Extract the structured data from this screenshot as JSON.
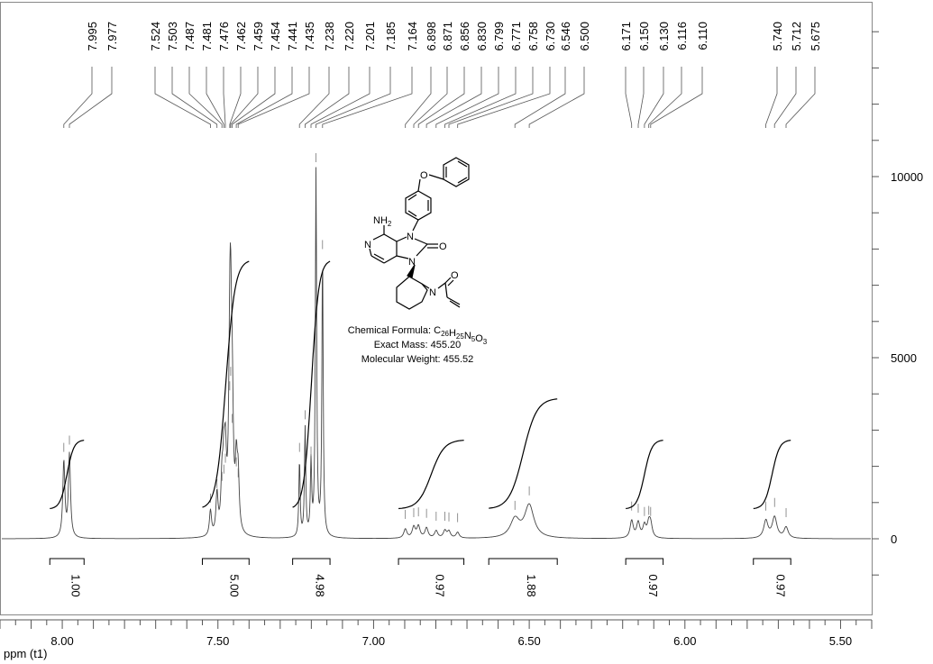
{
  "chart_data": {
    "type": "line",
    "xlabel": "ppm (t1)",
    "x_reversed": true,
    "xlim": [
      8.2,
      5.4
    ],
    "x_ticks": [
      "8.00",
      "7.50",
      "7.00",
      "6.50",
      "6.00",
      "5.50"
    ],
    "x_tick_values": [
      8.0,
      7.5,
      7.0,
      6.5,
      6.0,
      5.5
    ],
    "ylim": [
      -1400,
      14500
    ],
    "y_ticks": [
      "0",
      "5000",
      "10000"
    ],
    "y_tick_values": [
      0,
      5000,
      10000
    ],
    "series": [
      {
        "peaks": [
          {
            "ppm": 7.995,
            "h": 2100,
            "w": 0.004
          },
          {
            "ppm": 7.977,
            "h": 2300,
            "w": 0.004
          },
          {
            "ppm": 7.524,
            "h": 700,
            "w": 0.004
          },
          {
            "ppm": 7.503,
            "h": 1100,
            "w": 0.004
          },
          {
            "ppm": 7.487,
            "h": 1300,
            "w": 0.004
          },
          {
            "ppm": 7.481,
            "h": 1500,
            "w": 0.004
          },
          {
            "ppm": 7.476,
            "h": 1800,
            "w": 0.004
          },
          {
            "ppm": 7.462,
            "h": 3800,
            "w": 0.004
          },
          {
            "ppm": 7.459,
            "h": 4200,
            "w": 0.004
          },
          {
            "ppm": 7.454,
            "h": 2900,
            "w": 0.004
          },
          {
            "ppm": 7.441,
            "h": 1700,
            "w": 0.004
          },
          {
            "ppm": 7.435,
            "h": 1400,
            "w": 0.004
          },
          {
            "ppm": 7.238,
            "h": 2100,
            "w": 0.0025
          },
          {
            "ppm": 7.22,
            "h": 3000,
            "w": 0.0025
          },
          {
            "ppm": 7.201,
            "h": 2000,
            "w": 0.0025
          },
          {
            "ppm": 7.185,
            "h": 10100,
            "w": 0.0025
          },
          {
            "ppm": 7.164,
            "h": 7700,
            "w": 0.0025
          },
          {
            "ppm": 6.898,
            "h": 250,
            "w": 0.006
          },
          {
            "ppm": 6.871,
            "h": 300,
            "w": 0.006
          },
          {
            "ppm": 6.856,
            "h": 320,
            "w": 0.006
          },
          {
            "ppm": 6.83,
            "h": 280,
            "w": 0.006
          },
          {
            "ppm": 6.799,
            "h": 200,
            "w": 0.006
          },
          {
            "ppm": 6.771,
            "h": 200,
            "w": 0.006
          },
          {
            "ppm": 6.758,
            "h": 180,
            "w": 0.006
          },
          {
            "ppm": 6.73,
            "h": 160,
            "w": 0.006
          },
          {
            "ppm": 6.546,
            "h": 500,
            "w": 0.018
          },
          {
            "ppm": 6.5,
            "h": 900,
            "w": 0.018
          },
          {
            "ppm": 6.171,
            "h": 480,
            "w": 0.006
          },
          {
            "ppm": 6.15,
            "h": 420,
            "w": 0.006
          },
          {
            "ppm": 6.13,
            "h": 330,
            "w": 0.006
          },
          {
            "ppm": 6.116,
            "h": 360,
            "w": 0.006
          },
          {
            "ppm": 6.11,
            "h": 330,
            "w": 0.006
          },
          {
            "ppm": 5.74,
            "h": 480,
            "w": 0.008
          },
          {
            "ppm": 5.712,
            "h": 580,
            "w": 0.009
          },
          {
            "ppm": 5.675,
            "h": 300,
            "w": 0.008
          }
        ]
      }
    ],
    "peak_labels": [
      "7.995",
      "7.977",
      "7.524",
      "7.503",
      "7.487",
      "7.481",
      "7.476",
      "7.462",
      "7.459",
      "7.454",
      "7.441",
      "7.435",
      "7.238",
      "7.220",
      "7.201",
      "7.185",
      "7.164",
      "6.898",
      "6.871",
      "6.856",
      "6.830",
      "6.799",
      "6.771",
      "6.758",
      "6.730",
      "6.546",
      "6.500",
      "6.171",
      "6.150",
      "6.130",
      "6.116",
      "6.110",
      "5.740",
      "5.712",
      "5.675"
    ],
    "integrals": [
      {
        "from": 8.04,
        "to": 7.93,
        "value": "1.00",
        "height": 2250
      },
      {
        "from": 7.55,
        "to": 7.4,
        "value": "5.00",
        "height": 8100
      },
      {
        "from": 7.26,
        "to": 7.14,
        "value": "4.98",
        "height": 8100
      },
      {
        "from": 6.92,
        "to": 6.71,
        "value": "0.97",
        "height": 2250
      },
      {
        "from": 6.63,
        "to": 6.41,
        "value": "1.88",
        "height": 3600
      },
      {
        "from": 6.19,
        "to": 6.07,
        "value": "0.97",
        "height": 2250
      },
      {
        "from": 5.78,
        "to": 5.66,
        "value": "0.97",
        "height": 2250
      }
    ]
  },
  "compound": {
    "formula_label": "Chemical Formula: ",
    "formula_parts": [
      {
        "t": "C",
        "sub": "26"
      },
      {
        "t": "H",
        "sub": "25"
      },
      {
        "t": "N",
        "sub": "5"
      },
      {
        "t": "O",
        "sub": "3"
      }
    ],
    "exact_mass": "Exact Mass: 455.20",
    "molecular_weight": "Molecular Weight: 455.52",
    "atom_labels": {
      "nh2": "NH",
      "nh2_sub": "2",
      "n_pyridine": "N",
      "n3": "N",
      "n1": "N",
      "o_carbonyl": "O",
      "o_ether": "O",
      "n_piperidine": "N",
      "o_amide": "O"
    }
  }
}
